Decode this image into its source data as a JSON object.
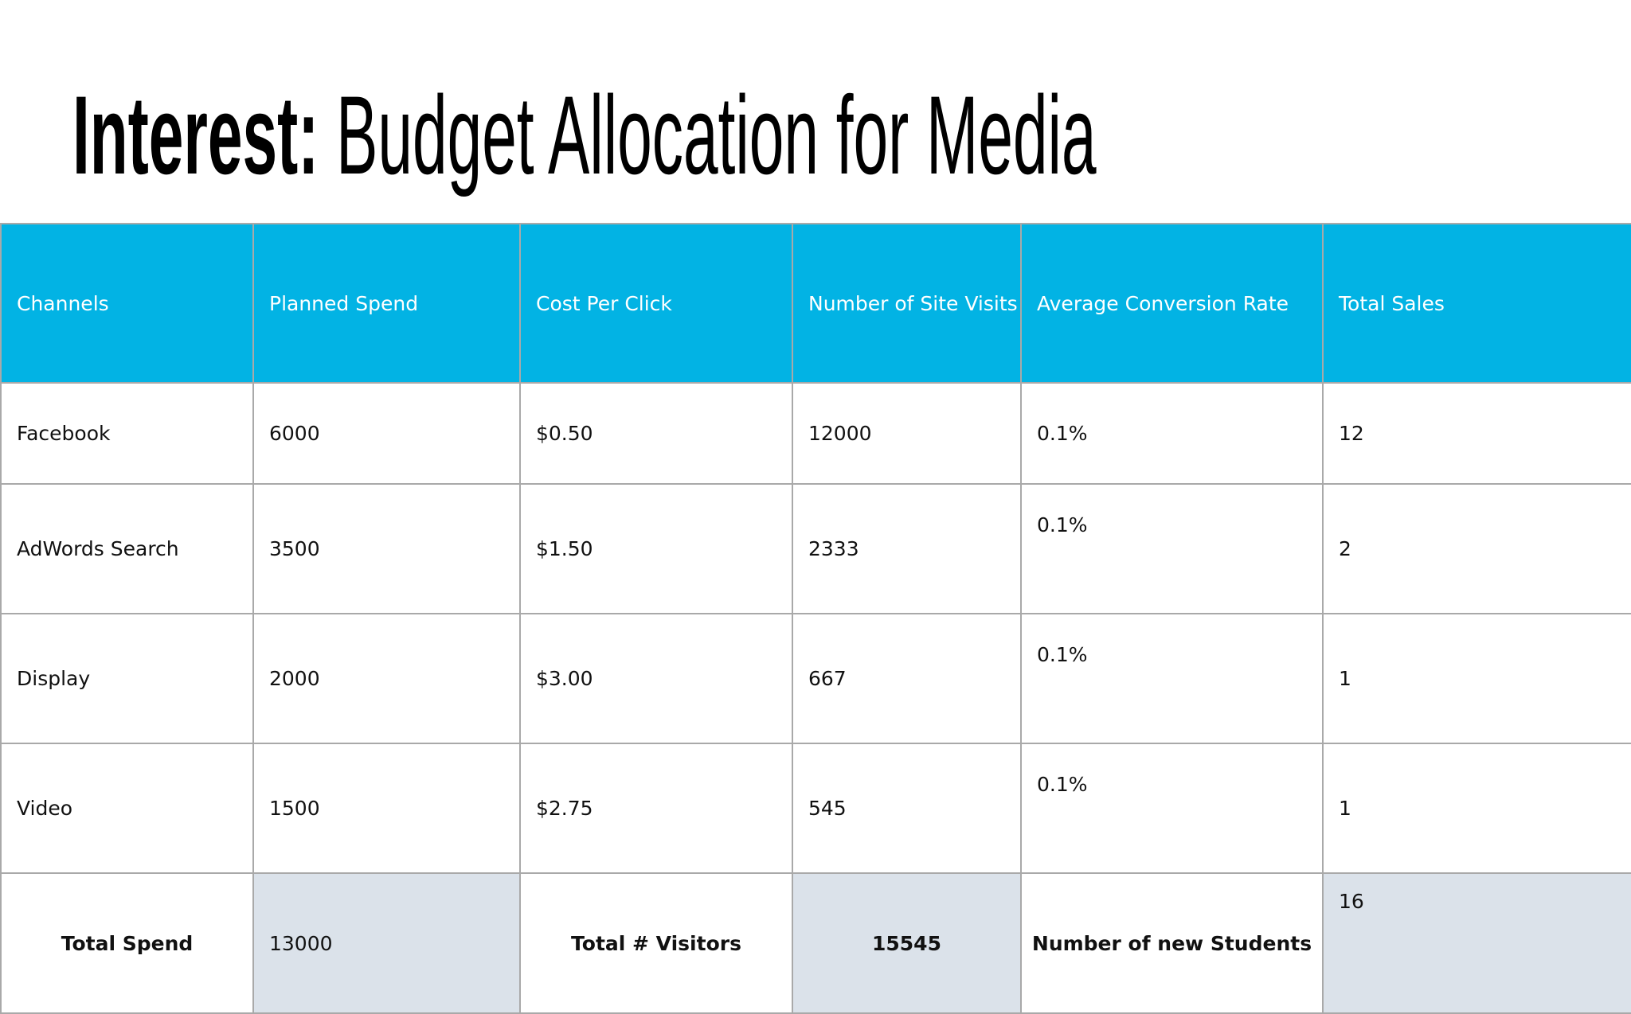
{
  "title": {
    "emphasis": "Interest:",
    "text": "Budget Allocation for Media"
  },
  "table": {
    "header": [
      "Channels",
      "Planned Spend",
      "Cost Per Click",
      "Number of Site Visits",
      "Average Conversion Rate",
      "Total Sales"
    ],
    "rows": [
      [
        "Facebook",
        "6000",
        "$0.50",
        "12000",
        "0.1%",
        "12"
      ],
      [
        "AdWords Search",
        "3500",
        "$1.50",
        "2333",
        "0.1%",
        "2"
      ],
      [
        "Display",
        "2000",
        "$3.00",
        "667",
        "0.1%",
        "1"
      ],
      [
        "Video",
        "1500",
        "$2.75",
        "545",
        "0.1%",
        "1"
      ]
    ],
    "footer": [
      "Total Spend",
      "13000",
      "Total # Visitors",
      "15545",
      "Number of new Students",
      "16"
    ]
  }
}
